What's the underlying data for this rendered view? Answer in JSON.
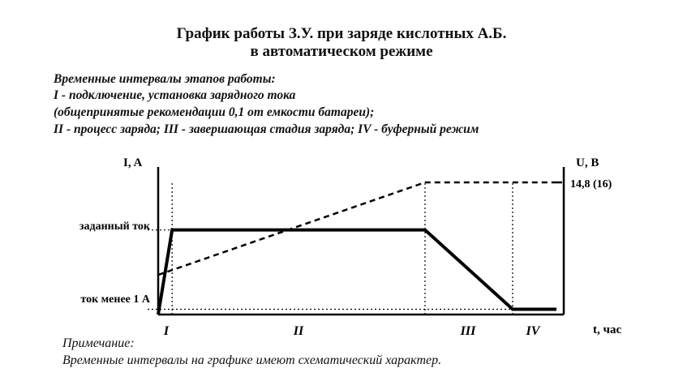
{
  "header": {
    "title_line1": "График работы З.У. при заряде кислотных А.Б.",
    "title_line2": "в автоматическом режиме"
  },
  "description": {
    "line1": "Временные интервалы этапов работы:",
    "line2": "I - подключение, установка зарядного тока",
    "line3": "(общепринятые рекомендации 0,1 от емкости батареи);",
    "line4": "II - процесс заряда; III - завершающая стадия заряда; IV - буферный режим"
  },
  "note": {
    "line1": "Примечание:",
    "line2": "Временные интервалы на графике имеют схематический характер."
  },
  "chart_data": {
    "type": "line",
    "title": "График работы З.У. при заряде кислотных А.Б. в автоматическом режиме",
    "xlabel": "t, час",
    "ylabel_left": "I, A",
    "ylabel_right": "U, B",
    "y_left_ticks": [
      "заданный ток",
      "ток менее 1 А"
    ],
    "y_right_ticks": [
      "14,8 (16)"
    ],
    "x_intervals": [
      "I",
      "II",
      "III",
      "IV"
    ],
    "x_range": [
      0,
      100
    ],
    "y_range": [
      0,
      100
    ],
    "series": [
      {
        "style": "solid",
        "color": "#000000",
        "points": [
          [
            0,
            0
          ],
          [
            3.5,
            64
          ],
          [
            67,
            64
          ],
          [
            89,
            4
          ],
          [
            100,
            4
          ]
        ]
      },
      {
        "style": "dashed",
        "color": "#000000",
        "points": [
          [
            0,
            30
          ],
          [
            67,
            100
          ],
          [
            100,
            100
          ]
        ]
      }
    ],
    "reference_lines": [
      {
        "axis": "x",
        "value": 3.5,
        "style": "dotted"
      },
      {
        "axis": "x",
        "value": 67,
        "style": "dotted"
      },
      {
        "axis": "x",
        "value": 89,
        "style": "dotted"
      },
      {
        "axis": "y",
        "value": 64,
        "style": "dotted"
      },
      {
        "axis": "y",
        "value": 4,
        "style": "dotted"
      }
    ],
    "grid": false
  }
}
